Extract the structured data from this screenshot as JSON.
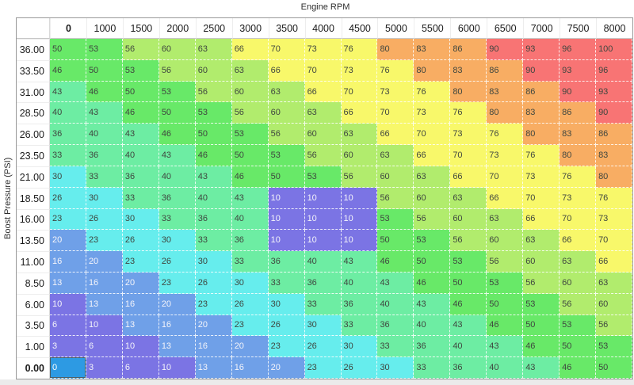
{
  "title": "Engine RPM",
  "y_axis_label": "Boost Pressure (PSI)",
  "table": {
    "column_headers": [
      "0",
      "1000",
      "1500",
      "2000",
      "2500",
      "3000",
      "3500",
      "4000",
      "4500",
      "5000",
      "5500",
      "6000",
      "6500",
      "7000",
      "7500",
      "8000"
    ],
    "row_headers": [
      "36.00",
      "33.50",
      "31.00",
      "28.50",
      "26.00",
      "23.50",
      "21.00",
      "18.50",
      "16.00",
      "13.50",
      "11.00",
      "8.50",
      "6.00",
      "3.50",
      "1.00",
      "0.00"
    ],
    "values": [
      [
        50,
        53,
        56,
        60,
        63,
        66,
        70,
        73,
        76,
        80,
        83,
        86,
        90,
        93,
        96,
        100
      ],
      [
        46,
        50,
        53,
        56,
        60,
        63,
        66,
        70,
        73,
        76,
        80,
        83,
        86,
        90,
        93,
        96
      ],
      [
        43,
        46,
        50,
        53,
        56,
        60,
        63,
        66,
        70,
        73,
        76,
        80,
        83,
        86,
        90,
        93
      ],
      [
        40,
        43,
        46,
        50,
        53,
        56,
        60,
        63,
        66,
        70,
        73,
        76,
        80,
        83,
        86,
        90
      ],
      [
        36,
        40,
        43,
        46,
        50,
        53,
        56,
        60,
        63,
        66,
        70,
        73,
        76,
        80,
        83,
        86
      ],
      [
        33,
        36,
        40,
        43,
        46,
        50,
        53,
        56,
        60,
        63,
        66,
        70,
        73,
        76,
        80,
        83
      ],
      [
        30,
        33,
        36,
        40,
        43,
        46,
        50,
        53,
        56,
        60,
        63,
        66,
        70,
        73,
        76,
        80
      ],
      [
        26,
        30,
        33,
        36,
        40,
        43,
        10,
        10,
        10,
        56,
        60,
        63,
        66,
        70,
        73,
        76
      ],
      [
        23,
        26,
        30,
        33,
        36,
        40,
        10,
        10,
        10,
        53,
        56,
        60,
        63,
        66,
        70,
        73
      ],
      [
        20,
        23,
        26,
        30,
        33,
        36,
        10,
        10,
        10,
        50,
        53,
        56,
        60,
        63,
        66,
        70
      ],
      [
        16,
        20,
        23,
        26,
        30,
        33,
        36,
        40,
        43,
        46,
        50,
        53,
        56,
        60,
        63,
        66
      ],
      [
        13,
        16,
        20,
        23,
        26,
        30,
        33,
        36,
        40,
        43,
        46,
        50,
        53,
        56,
        60,
        63
      ],
      [
        10,
        13,
        16,
        20,
        23,
        26,
        30,
        33,
        36,
        40,
        43,
        46,
        50,
        53,
        56,
        60
      ],
      [
        6,
        10,
        13,
        16,
        20,
        23,
        26,
        30,
        33,
        36,
        40,
        43,
        46,
        50,
        53,
        56
      ],
      [
        3,
        6,
        10,
        13,
        16,
        20,
        23,
        26,
        30,
        33,
        36,
        40,
        43,
        46,
        50,
        53
      ],
      [
        0,
        3,
        6,
        10,
        13,
        16,
        20,
        23,
        26,
        30,
        33,
        36,
        40,
        43,
        46,
        50
      ]
    ],
    "selected": {
      "row_index": 15,
      "col_index": 0,
      "value": 0
    }
  },
  "color_scale": [
    {
      "max": 12,
      "bg": "#7b74e4",
      "text": "#f4f4fa"
    },
    {
      "max": 22,
      "bg": "#6fa0e8",
      "text": "#f4f4fa"
    },
    {
      "max": 32,
      "bg": "#66eded",
      "text": "#3f463f"
    },
    {
      "max": 45,
      "bg": "#6deda3",
      "text": "#3f463f"
    },
    {
      "max": 55,
      "bg": "#68e968",
      "text": "#3f463f"
    },
    {
      "max": 65,
      "bg": "#b1ec6d",
      "text": "#3f463f"
    },
    {
      "max": 78,
      "bg": "#f8f86a",
      "text": "#3f463f"
    },
    {
      "max": 88,
      "bg": "#f8ad63",
      "text": "#3f463f"
    },
    {
      "max": 1000,
      "bg": "#f87474",
      "text": "#3f463f"
    }
  ],
  "selection_style": {
    "bg": "#2d9ae3",
    "border": "#4e5f66",
    "text": "#ffffff"
  }
}
